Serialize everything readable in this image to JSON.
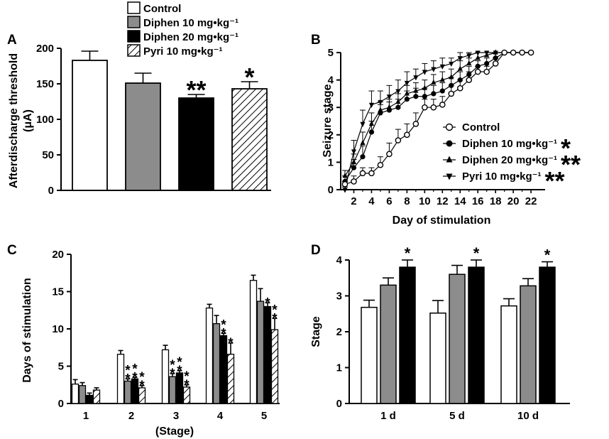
{
  "colors": {
    "control": "#ffffff",
    "diphen10": "#8c8c8c",
    "diphen20": "#000000",
    "pyri10": "hatched"
  },
  "legend_A": {
    "entries": [
      "Control",
      "Diphen 10 mg•kg⁻¹",
      "Diphen 20 mg•kg⁻¹",
      "Pyri 10 mg•kg⁻¹"
    ],
    "placement": "top"
  },
  "chart_data": [
    {
      "panel": "A",
      "type": "bar",
      "ylabel": "Afterdischarge threshold (μA)",
      "ylim": [
        0,
        200
      ],
      "yticks": [
        "0",
        "50",
        "100",
        "150",
        "200"
      ],
      "categories": [
        "Control",
        "Diphen 10 mg•kg⁻¹",
        "Diphen 20 mg•kg⁻¹",
        "Pyri 10 mg•kg⁻¹"
      ],
      "values": [
        183,
        151,
        130,
        143
      ],
      "errors": [
        13,
        14,
        5,
        10
      ],
      "annotations": [
        "",
        "",
        "**",
        "*"
      ],
      "grid": false
    },
    {
      "panel": "B",
      "type": "line",
      "xlabel": "Day of stimulation",
      "ylabel": "Seizure stage",
      "xlim": [
        0,
        23
      ],
      "ylim": [
        0,
        5
      ],
      "xticks": [
        "2",
        "4",
        "6",
        "8",
        "10",
        "12",
        "14",
        "16",
        "18",
        "20",
        "22"
      ],
      "yticks": [
        "0",
        "1",
        "2",
        "3",
        "4",
        "5"
      ],
      "legend_placement": "bottom-right",
      "series": [
        {
          "name": "Control",
          "marker": "open-circle",
          "significance": "",
          "x": [
            1,
            2,
            3,
            4,
            5,
            6,
            7,
            8,
            9,
            10,
            11,
            12,
            13,
            14,
            15,
            16,
            17,
            18,
            19,
            20,
            21,
            22
          ],
          "y": [
            0.2,
            0.3,
            0.6,
            0.6,
            0.9,
            1.3,
            1.8,
            2.0,
            2.4,
            3.0,
            3.0,
            3.1,
            3.5,
            3.7,
            4.0,
            4.3,
            4.3,
            4.6,
            5.0,
            5.0,
            5.0,
            5.0
          ],
          "err": [
            0.1,
            0.2,
            0.2,
            0.2,
            0.3,
            0.4,
            0.4,
            0.4,
            0.4,
            0.3,
            0.3,
            0.3,
            0.3,
            0.3,
            0.3,
            0.2,
            0.2,
            0.2,
            0,
            0,
            0,
            0
          ]
        },
        {
          "name": "Diphen 10 mg•kg⁻¹",
          "marker": "filled-circle",
          "significance": "*",
          "x": [
            1,
            2,
            3,
            4,
            5,
            6,
            7,
            8,
            9,
            10,
            11,
            12,
            13,
            14,
            15,
            16,
            17,
            18,
            19,
            20,
            21,
            22
          ],
          "y": [
            0.3,
            0.8,
            1.2,
            2.1,
            2.8,
            2.9,
            3.0,
            3.3,
            3.4,
            3.4,
            3.5,
            3.6,
            3.8,
            4.0,
            4.2,
            4.5,
            4.6,
            4.8,
            5.0,
            5.0,
            5.0,
            5.0
          ],
          "err": [
            0.2,
            0.3,
            0.4,
            0.4,
            0.3,
            0.3,
            0.3,
            0.3,
            0.3,
            0.3,
            0.3,
            0.3,
            0.3,
            0.3,
            0.3,
            0.2,
            0.2,
            0.2,
            0,
            0,
            0,
            0
          ]
        },
        {
          "name": "Diphen 20 mg•kg⁻¹",
          "marker": "triangle-up",
          "significance": "**",
          "x": [
            1,
            2,
            3,
            4,
            5,
            6,
            7,
            8,
            9,
            10,
            11,
            12,
            13,
            14,
            15,
            16,
            17,
            18,
            19,
            20,
            21,
            22
          ],
          "y": [
            0.5,
            1.0,
            1.7,
            2.4,
            2.9,
            3.0,
            3.2,
            3.5,
            3.6,
            3.7,
            3.9,
            4.0,
            4.1,
            4.4,
            4.6,
            4.8,
            4.9,
            5.0,
            5.0,
            5.0,
            5.0,
            5.0
          ],
          "err": [
            0.2,
            0.3,
            0.4,
            0.4,
            0.3,
            0.3,
            0.3,
            0.3,
            0.3,
            0.3,
            0.3,
            0.3,
            0.3,
            0.3,
            0.2,
            0.2,
            0.1,
            0,
            0,
            0,
            0,
            0
          ]
        },
        {
          "name": "Pyri 10 mg•kg⁻¹",
          "marker": "triangle-down",
          "significance": "**",
          "x": [
            1,
            2,
            3,
            4,
            5,
            6,
            7,
            8,
            9,
            10,
            11,
            12,
            13,
            14,
            15,
            16,
            17,
            18,
            19,
            20,
            21,
            22
          ],
          "y": [
            0.0,
            1.4,
            2.4,
            3.1,
            3.2,
            3.4,
            3.6,
            3.9,
            4.1,
            4.3,
            4.4,
            4.5,
            4.6,
            4.8,
            4.9,
            5.0,
            5.0,
            5.0,
            5.0,
            5.0,
            5.0,
            5.0
          ],
          "err": [
            0.1,
            0.4,
            0.5,
            0.5,
            0.4,
            0.4,
            0.4,
            0.4,
            0.3,
            0.3,
            0.3,
            0.3,
            0.2,
            0.2,
            0.1,
            0,
            0,
            0,
            0,
            0,
            0,
            0
          ]
        }
      ]
    },
    {
      "panel": "C",
      "type": "bar",
      "xlabel": "(Stage)",
      "ylabel": "Days of stimulation",
      "ylim": [
        0,
        20
      ],
      "yticks": [
        "0",
        "5",
        "10",
        "15",
        "20"
      ],
      "categories": [
        "1",
        "2",
        "3",
        "4",
        "5"
      ],
      "series": [
        {
          "name": "Control",
          "values": [
            2.6,
            6.6,
            7.2,
            12.8,
            16.5
          ],
          "errors": [
            0.6,
            0.5,
            0.6,
            0.5,
            0.7
          ],
          "annotations": [
            "",
            "",
            "",
            "",
            ""
          ]
        },
        {
          "name": "Diphen 10 mg•kg⁻¹",
          "values": [
            2.4,
            3.0,
            3.6,
            10.7,
            13.7
          ],
          "errors": [
            0.4,
            0.3,
            0.4,
            1.1,
            1.7
          ],
          "annotations": [
            "",
            "**",
            "**",
            "",
            ""
          ]
        },
        {
          "name": "Diphen 20 mg•kg⁻¹",
          "values": [
            1.1,
            3.3,
            4.1,
            9.1,
            13.0
          ],
          "errors": [
            0.3,
            0.2,
            0.3,
            0.3,
            0.5
          ],
          "annotations": [
            "",
            "**",
            "**",
            "**",
            "*"
          ]
        },
        {
          "name": "Pyri 10 mg•kg⁻¹",
          "values": [
            1.8,
            2.1,
            2.2,
            6.6,
            9.9
          ],
          "errors": [
            0.3,
            0.3,
            0.3,
            1.5,
            1.5
          ],
          "annotations": [
            "",
            "**",
            "**",
            "*",
            "**"
          ]
        }
      ]
    },
    {
      "panel": "D",
      "type": "bar",
      "ylabel": "Stage",
      "ylim": [
        0,
        4
      ],
      "yticks": [
        "0",
        "1",
        "2",
        "3",
        "4"
      ],
      "categories": [
        "1 d",
        "5 d",
        "10 d"
      ],
      "series": [
        {
          "name": "Control",
          "values": [
            2.68,
            2.52,
            2.72
          ],
          "errors": [
            0.2,
            0.35,
            0.2
          ],
          "annotations": [
            "",
            "",
            ""
          ]
        },
        {
          "name": "Diphen 10 mg•kg⁻¹",
          "values": [
            3.3,
            3.6,
            3.28
          ],
          "errors": [
            0.2,
            0.25,
            0.2
          ],
          "annotations": [
            "",
            "",
            ""
          ]
        },
        {
          "name": "Diphen 20 mg•kg⁻¹",
          "values": [
            3.8,
            3.8,
            3.8
          ],
          "errors": [
            0.2,
            0.2,
            0.15
          ],
          "annotations": [
            "*",
            "*",
            "*"
          ]
        }
      ]
    }
  ]
}
